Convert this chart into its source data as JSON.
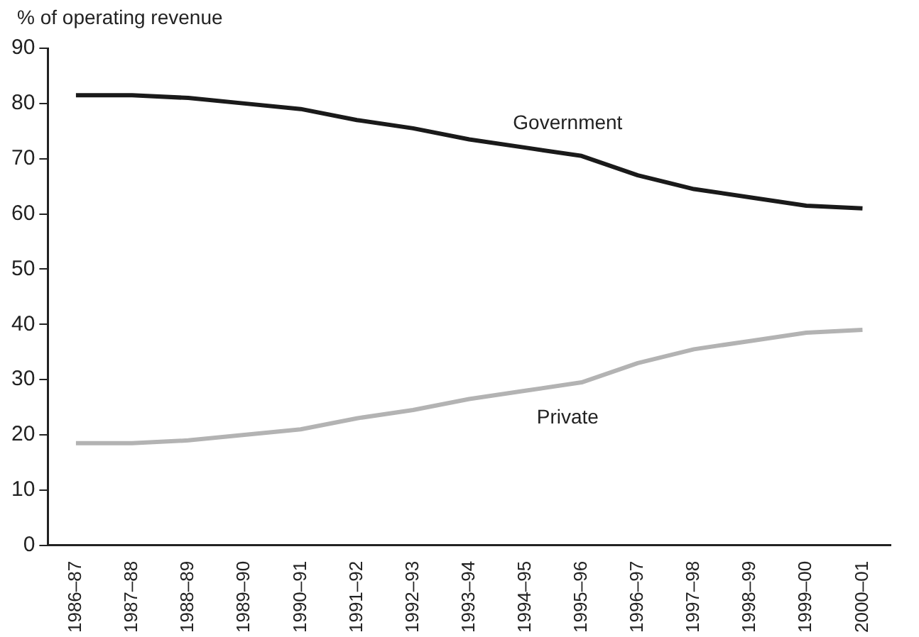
{
  "chart_data": {
    "type": "line",
    "ylabel": "% of operating revenue",
    "categories": [
      "1986–87",
      "1987–88",
      "1988–89",
      "1989–90",
      "1990–91",
      "1991–92",
      "1992–93",
      "1993–94",
      "1994–95",
      "1995–96",
      "1996–97",
      "1997–98",
      "1998–99",
      "1999–00",
      "2000–01"
    ],
    "series": [
      {
        "name": "Government",
        "color": "#1a1a1a",
        "values": [
          81.5,
          81.5,
          81,
          80,
          79,
          77,
          75.5,
          73.5,
          72,
          70.5,
          67,
          64.5,
          63,
          61.5,
          61
        ]
      },
      {
        "name": "Private",
        "color": "#b3b3b3",
        "values": [
          18.5,
          18.5,
          19,
          20,
          21,
          23,
          24.5,
          26.5,
          28,
          29.5,
          33,
          35.5,
          37,
          38.5,
          39
        ]
      }
    ],
    "ylim": [
      0,
      90
    ],
    "yticks": [
      0,
      10,
      20,
      30,
      40,
      50,
      60,
      70,
      80,
      90
    ],
    "grid": false,
    "legend": false,
    "marker": "none",
    "line_style": "solid"
  }
}
